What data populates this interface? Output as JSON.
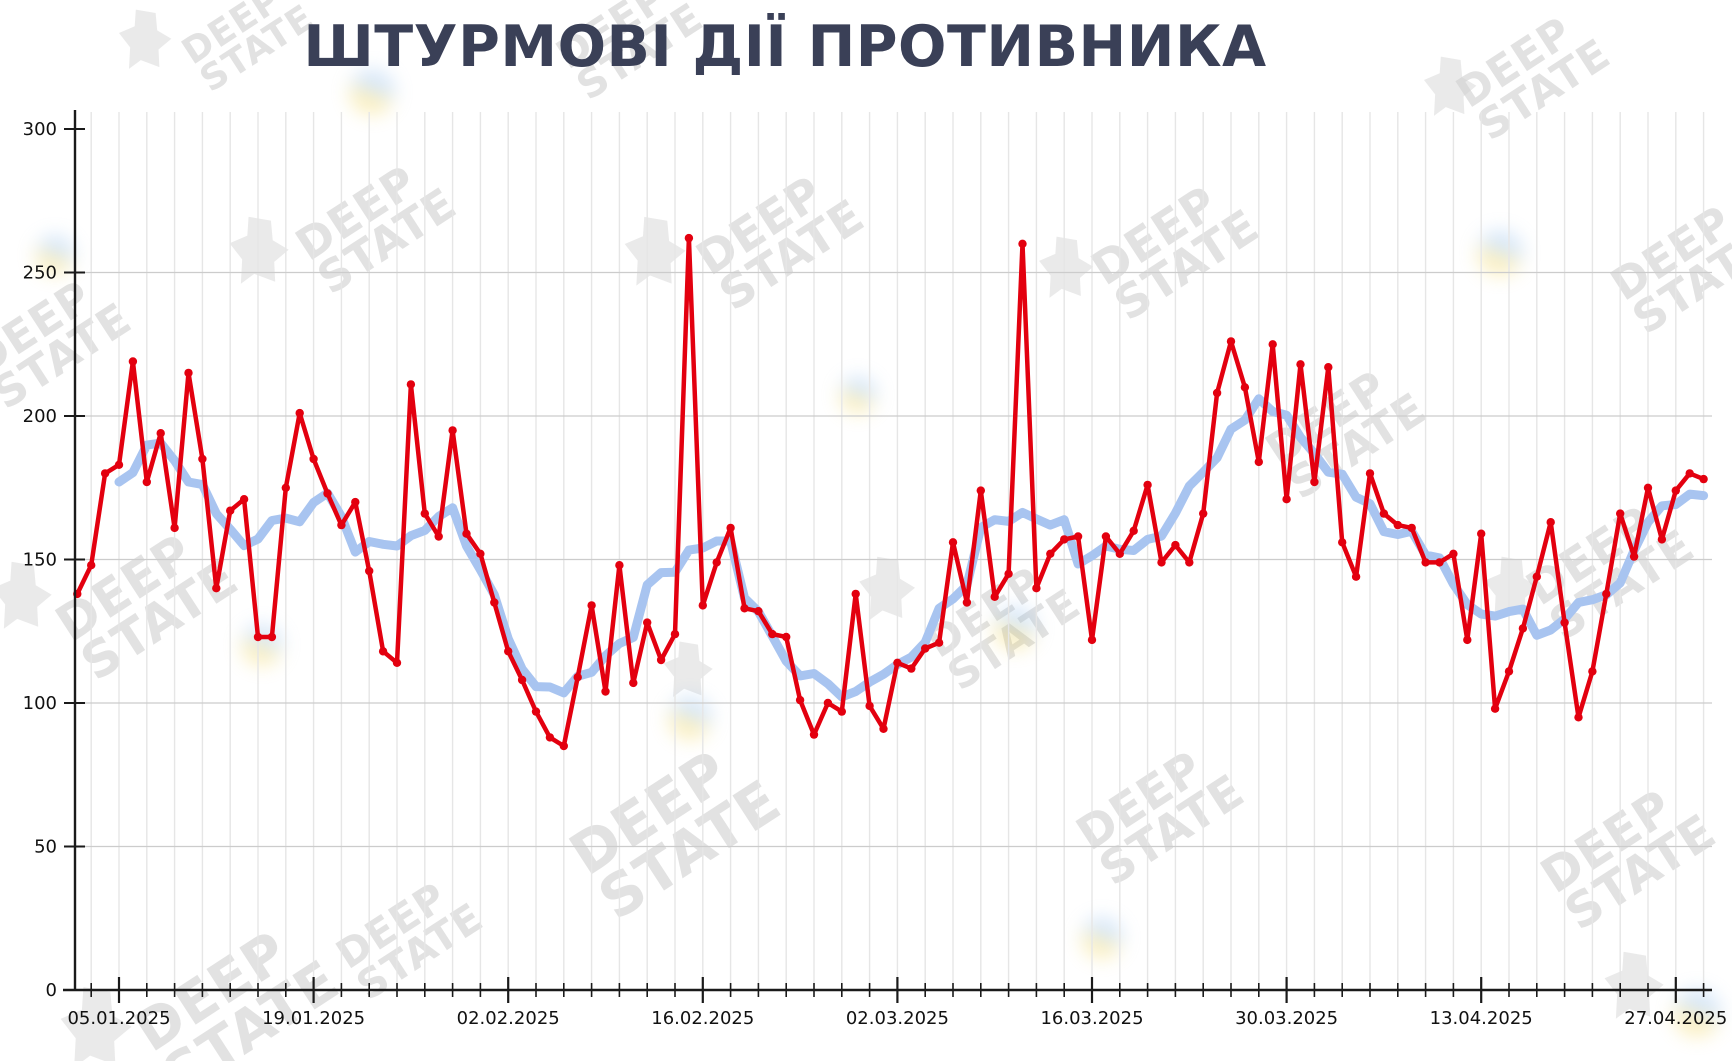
{
  "title": "ШТУРМОВІ ДІЇ ПРОТИВНИКА",
  "watermark": {
    "line1": "DEEP",
    "line2": "STATE"
  },
  "chart_data": {
    "type": "line",
    "title": "ШТУРМОВІ ДІЇ ПРОТИВНИКА",
    "x_start_date": "02.01.2025",
    "x_frequency": "daily",
    "x_tick_labels": [
      "05.01.2025",
      "19.01.2025",
      "02.02.2025",
      "16.02.2025",
      "02.03.2025",
      "16.03.2025",
      "30.03.2025",
      "13.04.2025",
      "27.04.2025"
    ],
    "y_ticks": [
      0,
      50,
      100,
      150,
      200,
      250,
      300
    ],
    "ylim": [
      0,
      300
    ],
    "grid": true,
    "legend": "none",
    "series": [
      {
        "name": "daily-assault-actions",
        "color": "#e3000f",
        "values": [
          138,
          148,
          180,
          183,
          219,
          177,
          194,
          161,
          215,
          185,
          140,
          167,
          171,
          123,
          123,
          175,
          201,
          185,
          173,
          162,
          170,
          146,
          118,
          114,
          211,
          166,
          158,
          195,
          159,
          152,
          135,
          118,
          108,
          97,
          88,
          85,
          109,
          134,
          104,
          148,
          107,
          128,
          115,
          124,
          262,
          134,
          149,
          161,
          133,
          132,
          124,
          123,
          101,
          89,
          100,
          97,
          138,
          99,
          91,
          114,
          112,
          119,
          121,
          156,
          135,
          174,
          137,
          145,
          260,
          140,
          152,
          157,
          158,
          122,
          158,
          152,
          160,
          176,
          149,
          155,
          149,
          166,
          208,
          226,
          210,
          184,
          225,
          171,
          218,
          177,
          217,
          156,
          144,
          180,
          166,
          162,
          161,
          149,
          149,
          152,
          122,
          159,
          98,
          111,
          126,
          144,
          163,
          128,
          95,
          111,
          138,
          166,
          151,
          175,
          157,
          174,
          180,
          178
        ]
      },
      {
        "name": "moving-average-7day",
        "color": "#a8c4f0",
        "derived_from": "daily-assault-actions",
        "window": 7
      }
    ]
  }
}
